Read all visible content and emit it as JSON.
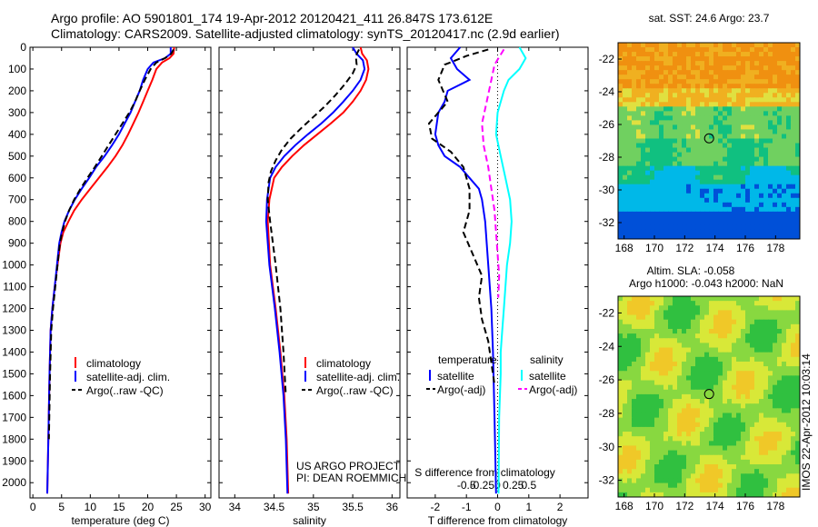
{
  "header": {
    "line1": "Argo profile: AO 5901801_174 19-Apr-2012 20120421_411 26.847S 173.612E",
    "line2": "Climatology: CARS2009. Satellite-adjusted climatology: synTS_20120417.nc (2.9d earlier)"
  },
  "colors": {
    "climatology": "#ff0000",
    "satellite": "#0000ff",
    "argo": "#000000",
    "salinity_satellite": "#00ffff",
    "salinity_argo": "#ff00ff"
  },
  "chart_data": [
    {
      "type": "line",
      "id": "temperature",
      "xlabel": "temperature (deg C)",
      "ylabel": "",
      "xlim": [
        -0.5,
        31
      ],
      "xticks": [
        0,
        5,
        10,
        15,
        20,
        25,
        30
      ],
      "ylim": [
        0,
        2070
      ],
      "yticks": [
        0,
        100,
        200,
        300,
        400,
        500,
        600,
        700,
        800,
        900,
        1000,
        1100,
        1200,
        1300,
        1400,
        1500,
        1600,
        1700,
        1800,
        1900,
        2000
      ],
      "legend": [
        "climatology",
        "satellite-adj. clim.",
        "Argo(..raw -QC)"
      ],
      "series": [
        {
          "name": "climatology",
          "color": "#ff0000",
          "style": "solid",
          "x": [
            24.6,
            24.5,
            23.8,
            22.5,
            21.5,
            20.8,
            20.0,
            19.2,
            18.4,
            17.5,
            16.6,
            15.6,
            14.4,
            13.0,
            11.5,
            10.0,
            8.5,
            7.2,
            6.2,
            5.3,
            4.8,
            4.3,
            3.8,
            3.4,
            3.1,
            2.9,
            2.7,
            2.5
          ],
          "y": [
            0,
            30,
            50,
            70,
            100,
            150,
            200,
            250,
            300,
            350,
            400,
            450,
            500,
            550,
            600,
            650,
            700,
            750,
            800,
            850,
            900,
            1000,
            1100,
            1200,
            1300,
            1500,
            1800,
            2050
          ]
        },
        {
          "name": "satellite-adj. clim.",
          "color": "#0000ff",
          "style": "solid",
          "x": [
            24.0,
            24.0,
            23.0,
            21.0,
            20.0,
            19.2,
            18.6,
            17.8,
            17.0,
            16.0,
            15.0,
            13.8,
            12.5,
            11.0,
            9.8,
            8.5,
            7.3,
            6.3,
            5.5,
            5.0,
            4.6,
            4.2,
            3.8,
            3.4,
            3.1,
            2.9,
            2.7,
            2.5
          ],
          "y": [
            0,
            30,
            50,
            70,
            100,
            150,
            200,
            250,
            300,
            350,
            400,
            450,
            500,
            550,
            600,
            650,
            700,
            750,
            800,
            850,
            900,
            1000,
            1100,
            1200,
            1300,
            1500,
            1800,
            2050
          ]
        },
        {
          "name": "Argo(..raw -QC)",
          "color": "#000000",
          "style": "dash",
          "x": [
            24.5,
            24.1,
            23.0,
            21.5,
            20.5,
            19.5,
            18.6,
            17.8,
            16.8,
            15.6,
            14.4,
            13.2,
            12.0,
            10.8,
            9.5,
            8.3,
            7.2,
            6.3,
            5.6,
            5.1,
            4.7,
            4.3,
            3.9,
            3.5,
            3.2,
            3.0,
            2.8
          ],
          "y": [
            10,
            30,
            50,
            70,
            100,
            150,
            200,
            250,
            300,
            350,
            400,
            450,
            500,
            550,
            600,
            650,
            700,
            750,
            800,
            850,
            900,
            1000,
            1100,
            1200,
            1300,
            1500,
            1800
          ]
        }
      ]
    },
    {
      "type": "line",
      "id": "salinity",
      "xlabel": "salinity",
      "ylabel": "",
      "xlim": [
        33.8,
        36.1
      ],
      "xticks": [
        34,
        34.5,
        35,
        35.5,
        36
      ],
      "ylim": [
        0,
        2070
      ],
      "legend": [
        "climatology",
        "satellite-adj. clim.",
        "Argo(..raw -QC)"
      ],
      "annotation": [
        "US ARGO PROJECT",
        "PI: DEAN ROEMMICH"
      ],
      "series": [
        {
          "name": "climatology",
          "color": "#ff0000",
          "style": "solid",
          "x": [
            35.6,
            35.62,
            35.68,
            35.7,
            35.67,
            35.6,
            35.5,
            35.38,
            35.22,
            35.05,
            34.88,
            34.73,
            34.6,
            34.5,
            34.44,
            34.42,
            34.45,
            34.52,
            34.58,
            34.63,
            34.66,
            34.68
          ],
          "y": [
            0,
            30,
            60,
            100,
            150,
            200,
            250,
            300,
            350,
            400,
            450,
            500,
            550,
            600,
            700,
            800,
            1000,
            1200,
            1400,
            1600,
            1800,
            2050
          ]
        },
        {
          "name": "satellite-adj. clim.",
          "color": "#0000ff",
          "style": "solid",
          "x": [
            35.5,
            35.55,
            35.63,
            35.65,
            35.6,
            35.5,
            35.38,
            35.25,
            35.1,
            34.93,
            34.77,
            34.63,
            34.52,
            34.45,
            34.41,
            34.4,
            34.44,
            34.51,
            34.57,
            34.62,
            34.65,
            34.67
          ],
          "y": [
            0,
            30,
            60,
            100,
            150,
            200,
            250,
            300,
            350,
            400,
            450,
            500,
            550,
            600,
            700,
            800,
            1000,
            1200,
            1400,
            1600,
            1800,
            2050
          ]
        },
        {
          "name": "Argo(..raw -QC)",
          "color": "#000000",
          "style": "dash",
          "x": [
            35.58,
            35.54,
            35.55,
            35.5,
            35.4,
            35.28,
            35.15,
            35.0,
            34.85,
            34.71,
            34.6,
            34.52,
            34.46,
            34.43,
            34.42,
            34.45,
            34.52,
            34.58,
            34.62,
            34.65
          ],
          "y": [
            10,
            40,
            80,
            120,
            170,
            220,
            270,
            320,
            370,
            420,
            470,
            520,
            570,
            620,
            700,
            800,
            1000,
            1200,
            1400,
            1600
          ]
        }
      ]
    },
    {
      "type": "line",
      "id": "difference",
      "xlabel": "T difference from climatology",
      "top_label": "S difference from climatology",
      "xlim": [
        -2.9,
        2.9
      ],
      "xticks": [
        -2,
        -1,
        0,
        1,
        2
      ],
      "sticks": [
        "-0.5",
        "-0.25",
        "0",
        "0.25",
        "0.5"
      ],
      "ylim": [
        0,
        2070
      ],
      "legend_titles": [
        "temperature",
        "salinity"
      ],
      "legend": [
        "satellite",
        "Argo(-adj)",
        "satellite",
        "Argo(-adj)"
      ],
      "series": [
        {
          "name": "satellite",
          "group": "temperature",
          "color": "#0000ff",
          "style": "solid",
          "x": [
            -1.2,
            -1.5,
            -1.3,
            -0.9,
            -1.6,
            -1.7,
            -1.9,
            -2.0,
            -1.9,
            -1.7,
            -1.2,
            -0.9,
            -0.6,
            -0.5,
            -0.4,
            -0.35,
            -0.3,
            -0.25,
            -0.2,
            -0.15,
            -0.1,
            -0.05
          ],
          "y": [
            0,
            50,
            100,
            150,
            200,
            250,
            300,
            400,
            450,
            500,
            550,
            600,
            650,
            700,
            800,
            900,
            1000,
            1100,
            1200,
            1400,
            1700,
            2050
          ]
        },
        {
          "name": "Argo(-adj)",
          "group": "temperature",
          "color": "#000000",
          "style": "dash",
          "x": [
            -0.3,
            -1.0,
            -1.7,
            -1.9,
            -1.6,
            -2.2,
            -2.1,
            -1.5,
            -1.1,
            -0.9,
            -0.9,
            -1.1,
            -0.8,
            -0.5,
            -0.6,
            -0.5,
            -0.3,
            -0.2,
            -0.1
          ],
          "y": [
            10,
            40,
            80,
            150,
            250,
            350,
            420,
            480,
            550,
            650,
            750,
            850,
            950,
            1050,
            1150,
            1250,
            1350,
            1450,
            1550
          ]
        },
        {
          "name": "satellite",
          "group": "salinity",
          "color": "#00ffff",
          "style": "solid",
          "x": [
            0.7,
            0.9,
            0.7,
            0.35,
            0.2,
            0.0,
            -0.05,
            0.1,
            0.25,
            0.4,
            0.45,
            0.4,
            0.3,
            0.25,
            0.2,
            0.15,
            0.1,
            0.1,
            0.05,
            0.03
          ],
          "y": [
            0,
            50,
            100,
            150,
            200,
            300,
            400,
            500,
            600,
            700,
            800,
            900,
            1000,
            1100,
            1200,
            1300,
            1400,
            1500,
            1700,
            2050
          ]
        },
        {
          "name": "Argo(-adj)",
          "group": "salinity",
          "color": "#ff00ff",
          "style": "dash",
          "x": [
            0.2,
            -0.1,
            -0.2,
            -0.35,
            -0.5,
            -0.45,
            -0.3,
            -0.2,
            -0.1,
            -0.05,
            0.0,
            0.05,
            0.02
          ],
          "y": [
            10,
            80,
            150,
            250,
            350,
            450,
            550,
            650,
            750,
            850,
            950,
            1050,
            1150
          ]
        }
      ]
    }
  ],
  "maps": {
    "top": {
      "title": "sat. SST: 24.6 Argo: 23.7",
      "xticks": [
        "168",
        "170",
        "172",
        "174",
        "176",
        "178"
      ],
      "yticks": [
        "-22",
        "-24",
        "-26",
        "-28",
        "-30",
        "-32"
      ],
      "argo_lon": 173.612,
      "argo_lat": -26.847
    },
    "bottom": {
      "title1": "Altim. SLA: -0.058",
      "title2": "Argo h1000: -0.043 h2000: NaN",
      "xticks": [
        "168",
        "170",
        "172",
        "174",
        "176",
        "178"
      ],
      "yticks": [
        "-22",
        "-24",
        "-26",
        "-28",
        "-30",
        "-32"
      ],
      "argo_lon": 173.612,
      "argo_lat": -26.847
    }
  },
  "stamp": "IMOS 22-Apr-2012 10:03:14"
}
